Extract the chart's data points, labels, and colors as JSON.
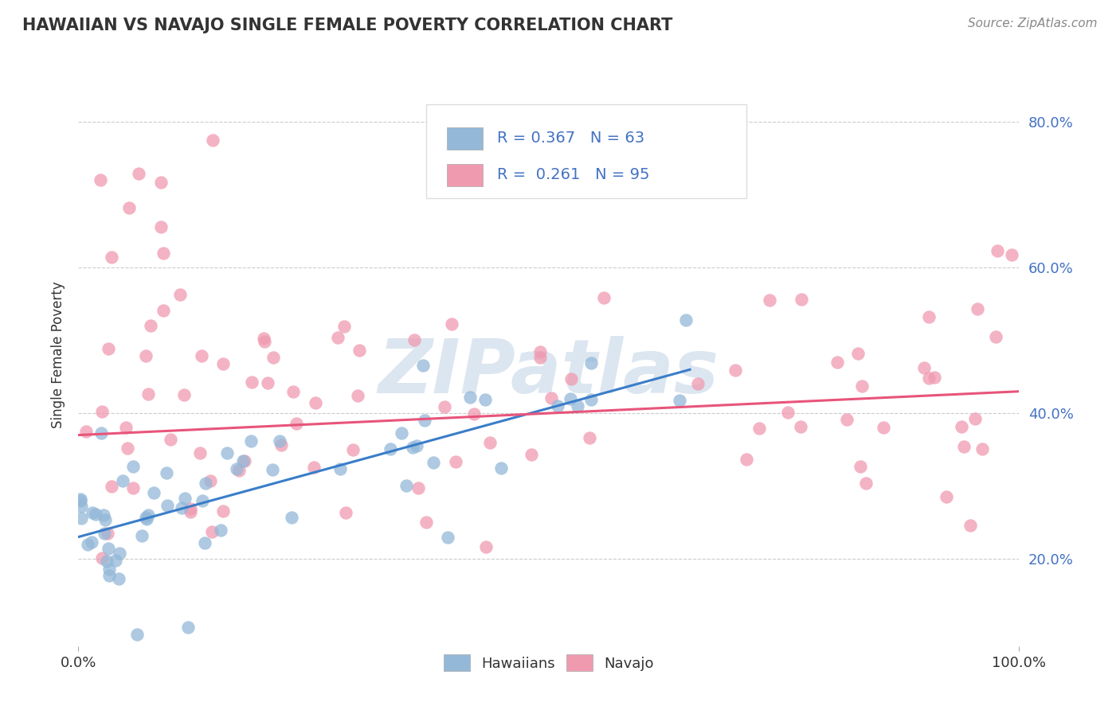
{
  "title": "HAWAIIAN VS NAVAJO SINGLE FEMALE POVERTY CORRELATION CHART",
  "source": "Source: ZipAtlas.com",
  "ylabel": "Single Female Poverty",
  "hawaiian_R": 0.367,
  "hawaiian_N": 63,
  "navajo_R": 0.261,
  "navajo_N": 95,
  "hawaiian_color": "#93b8d8",
  "navajo_color": "#f09ab0",
  "hawaiian_line_color": "#3a7dc9",
  "navajo_line_color": "#e8547a",
  "legend_text_color": "#4472c4",
  "background_color": "#ffffff",
  "grid_color": "#cccccc",
  "watermark_color": "#dce6f0",
  "title_color": "#333333",
  "source_color": "#888888",
  "label_color": "#333333",
  "tick_color": "#4472c4",
  "ytick_positions": [
    0.2,
    0.4,
    0.6,
    0.8
  ],
  "ytick_labels": [
    "20.0%",
    "40.0%",
    "60.0%",
    "80.0%"
  ],
  "ylim": [
    0.08,
    0.88
  ],
  "xlim": [
    0.0,
    1.0
  ]
}
